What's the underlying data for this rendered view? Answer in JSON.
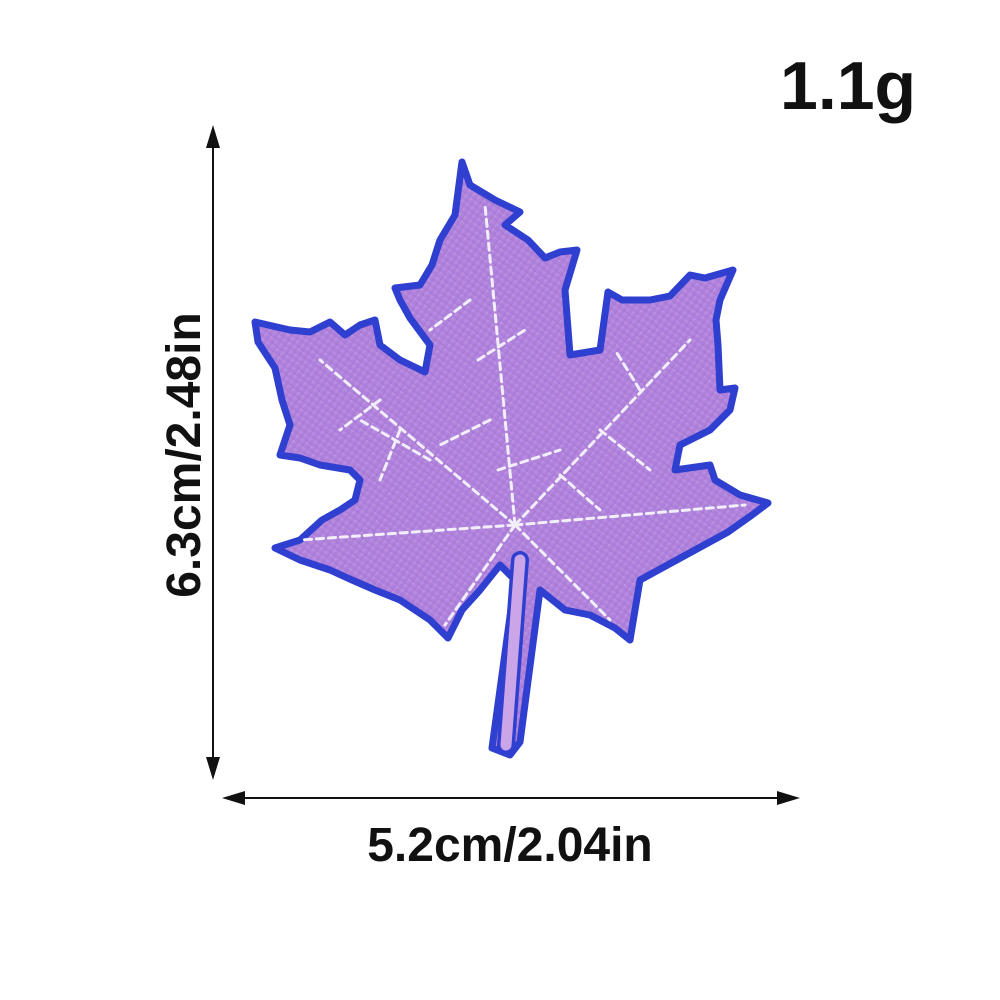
{
  "product": {
    "weight": "1.1g",
    "height_dimension": "6.3cm/2.48in",
    "width_dimension": "5.2cm/2.04in",
    "patch_fill_color": "#b487dc",
    "patch_border_color": "#2f3fcf",
    "vein_color": "#f2eefa"
  }
}
